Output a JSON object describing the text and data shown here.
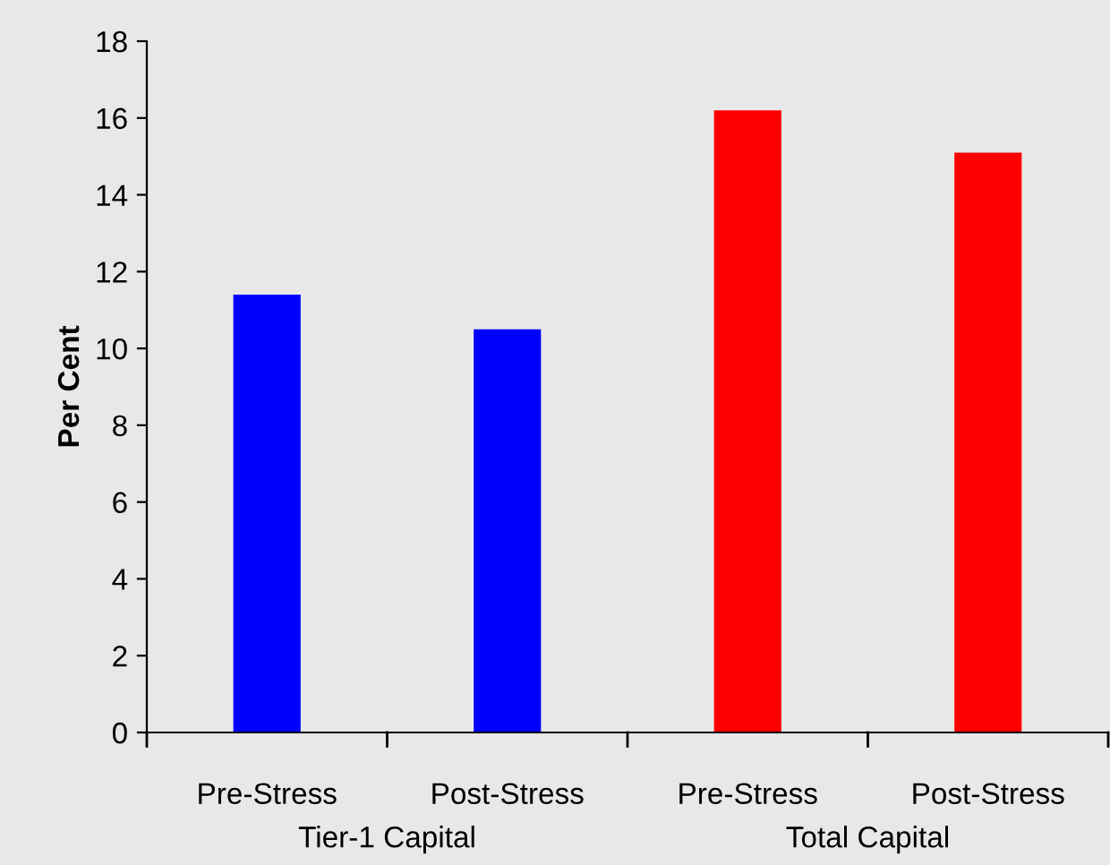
{
  "chart_data": {
    "type": "bar",
    "ylabel": "Per Cent",
    "categories": [
      "Pre-Stress",
      "Post-Stress",
      "Pre-Stress",
      "Post-Stress"
    ],
    "values": [
      11.4,
      10.5,
      16.2,
      15.1
    ],
    "colors": [
      "#0000ff",
      "#0000ff",
      "#ff0000",
      "#ff0000"
    ],
    "ylim": [
      0,
      18
    ],
    "yticks": [
      0,
      2,
      4,
      6,
      8,
      10,
      12,
      14,
      16,
      18
    ],
    "grid": false,
    "legend": false,
    "annotations": [
      "Tier-1 Capital",
      "Total Capital"
    ]
  }
}
